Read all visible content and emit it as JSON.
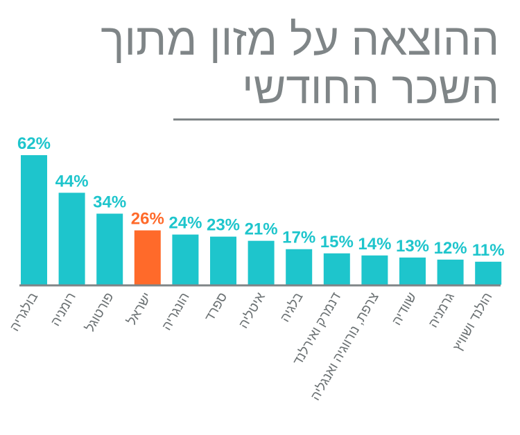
{
  "title_line1": "ההוצאה על מזון מתוך",
  "title_line2": "השכר החודשי",
  "colors": {
    "bar": "#1ec5cc",
    "highlight": "#ff6a2a",
    "axis": "#7f8587",
    "title": "#7f8587"
  },
  "chart_data": {
    "type": "bar",
    "title": "ההוצאה על מזון מתוך השכר החודשי",
    "categories": [
      "בולגריה",
      "רומניה",
      "פורטוגל",
      "ישראל",
      "הונגריה",
      "ספרד",
      "איטליה",
      "בלגיה",
      "דנמרק ואירלנד",
      "צרפת, נורווגיה ואנגליה",
      "שוודיה",
      "גרמניה",
      "הולנד ושוויץ"
    ],
    "values": [
      62,
      44,
      34,
      26,
      24,
      23,
      21,
      17,
      15,
      14,
      13,
      12,
      11
    ],
    "value_labels": [
      "62%",
      "44%",
      "34%",
      "26%",
      "24%",
      "23%",
      "21%",
      "17%",
      "15%",
      "14%",
      "13%",
      "12%",
      "11%"
    ],
    "highlight_index": 3,
    "xlabel": "",
    "ylabel": "",
    "ylim": [
      0,
      62
    ],
    "grid": false
  }
}
